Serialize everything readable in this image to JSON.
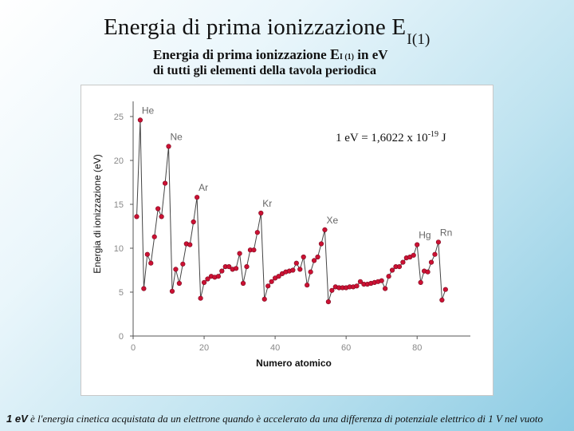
{
  "slide": {
    "title": "Energia di prima ionizzazione E",
    "title_sub": "I(1)",
    "caption_prefix": "Energia di prima ionizzazione ",
    "caption_symbol": "E",
    "caption_sub": "I (1)",
    "caption_suffix": " in eV",
    "caption_line2": "di tutti gli elementi della tavola periodica",
    "conversion_text": "1 eV = 1,6022 x 10",
    "conversion_exp": "-19",
    "conversion_unit": " J",
    "footnote_ev": "1 eV",
    "footnote_text": " è l'energia cinetica acquistata da un elettrone quando è accelerato da una differenza di potenziale elettrico di 1 V nel vuoto"
  },
  "chart_data": {
    "type": "line",
    "xlabel": "Numero atomico",
    "ylabel": "Energia di ionizzazione (eV)",
    "xlim": [
      0,
      95
    ],
    "ylim": [
      0,
      26
    ],
    "xticks": [
      0,
      20,
      40,
      60,
      80
    ],
    "xtick_labels": [
      "0",
      "20",
      "40",
      "60",
      "80"
    ],
    "yticks": [
      0,
      5,
      10,
      15,
      20,
      25
    ],
    "ytick_labels": [
      "0",
      "5",
      "10",
      "15",
      "20",
      "25"
    ],
    "grid": false,
    "legend": "none",
    "series": [
      {
        "color": "#cc1133",
        "x": [
          1,
          2,
          3,
          4,
          5,
          6,
          7,
          8,
          9,
          10,
          11,
          12,
          13,
          14,
          15,
          16,
          17,
          18,
          19,
          20,
          21,
          22,
          23,
          24,
          25,
          26,
          27,
          28,
          29,
          30,
          31,
          32,
          33,
          34,
          35,
          36,
          37,
          38,
          39,
          40,
          41,
          42,
          43,
          44,
          45,
          46,
          47,
          48,
          49,
          50,
          51,
          52,
          53,
          54,
          55,
          56,
          57,
          58,
          59,
          60,
          61,
          62,
          63,
          64,
          65,
          66,
          67,
          68,
          69,
          70,
          71,
          72,
          73,
          74,
          75,
          76,
          77,
          78,
          79,
          80,
          81,
          82,
          83,
          84,
          85,
          86,
          87,
          88
        ],
        "y": [
          13.6,
          24.6,
          5.4,
          9.3,
          8.3,
          11.3,
          14.5,
          13.6,
          17.4,
          21.6,
          5.1,
          7.6,
          6.0,
          8.2,
          10.5,
          10.4,
          13.0,
          15.8,
          4.3,
          6.1,
          6.5,
          6.8,
          6.7,
          6.8,
          7.4,
          7.9,
          7.9,
          7.6,
          7.7,
          9.4,
          6.0,
          7.9,
          9.8,
          9.8,
          11.8,
          14.0,
          4.2,
          5.7,
          6.2,
          6.6,
          6.8,
          7.1,
          7.3,
          7.4,
          7.5,
          8.3,
          7.6,
          9.0,
          5.8,
          7.3,
          8.6,
          9.0,
          10.5,
          12.1,
          3.9,
          5.2,
          5.6,
          5.5,
          5.5,
          5.5,
          5.6,
          5.6,
          5.7,
          6.2,
          5.9,
          5.9,
          6.0,
          6.1,
          6.2,
          6.3,
          5.4,
          6.8,
          7.5,
          7.9,
          7.9,
          8.4,
          8.9,
          9.0,
          9.2,
          10.4,
          6.1,
          7.4,
          7.3,
          8.4,
          9.3,
          10.7,
          4.1,
          5.3
        ]
      }
    ],
    "annotations": [
      {
        "text": "He",
        "x": 2,
        "y": 24.6
      },
      {
        "text": "Ne",
        "x": 10,
        "y": 21.6
      },
      {
        "text": "Ar",
        "x": 18,
        "y": 15.8
      },
      {
        "text": "Kr",
        "x": 36,
        "y": 14.0
      },
      {
        "text": "Xe",
        "x": 54,
        "y": 12.1
      },
      {
        "text": "Hg",
        "x": 80,
        "y": 10.4
      },
      {
        "text": "Rn",
        "x": 86,
        "y": 10.7
      }
    ]
  }
}
